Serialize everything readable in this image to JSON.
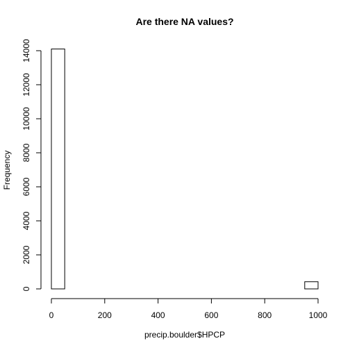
{
  "chart_data": {
    "type": "bar",
    "title": "Are there NA values?",
    "xlabel": "precip.boulder$HPCP",
    "ylabel": "Frequency",
    "xlim": [
      0,
      1000
    ],
    "ylim": [
      0,
      14000
    ],
    "x_ticks": [
      0,
      200,
      400,
      600,
      800,
      1000
    ],
    "y_ticks": [
      0,
      2000,
      4000,
      6000,
      8000,
      10000,
      12000,
      14000
    ],
    "bin_edges": [
      0,
      50,
      100,
      150,
      200,
      250,
      300,
      350,
      400,
      450,
      500,
      550,
      600,
      650,
      700,
      750,
      800,
      850,
      900,
      950,
      1000
    ],
    "values": [
      14100,
      0,
      0,
      0,
      0,
      0,
      0,
      0,
      0,
      0,
      0,
      0,
      0,
      0,
      0,
      0,
      0,
      0,
      0,
      420
    ],
    "grid": false,
    "legend": "none"
  }
}
